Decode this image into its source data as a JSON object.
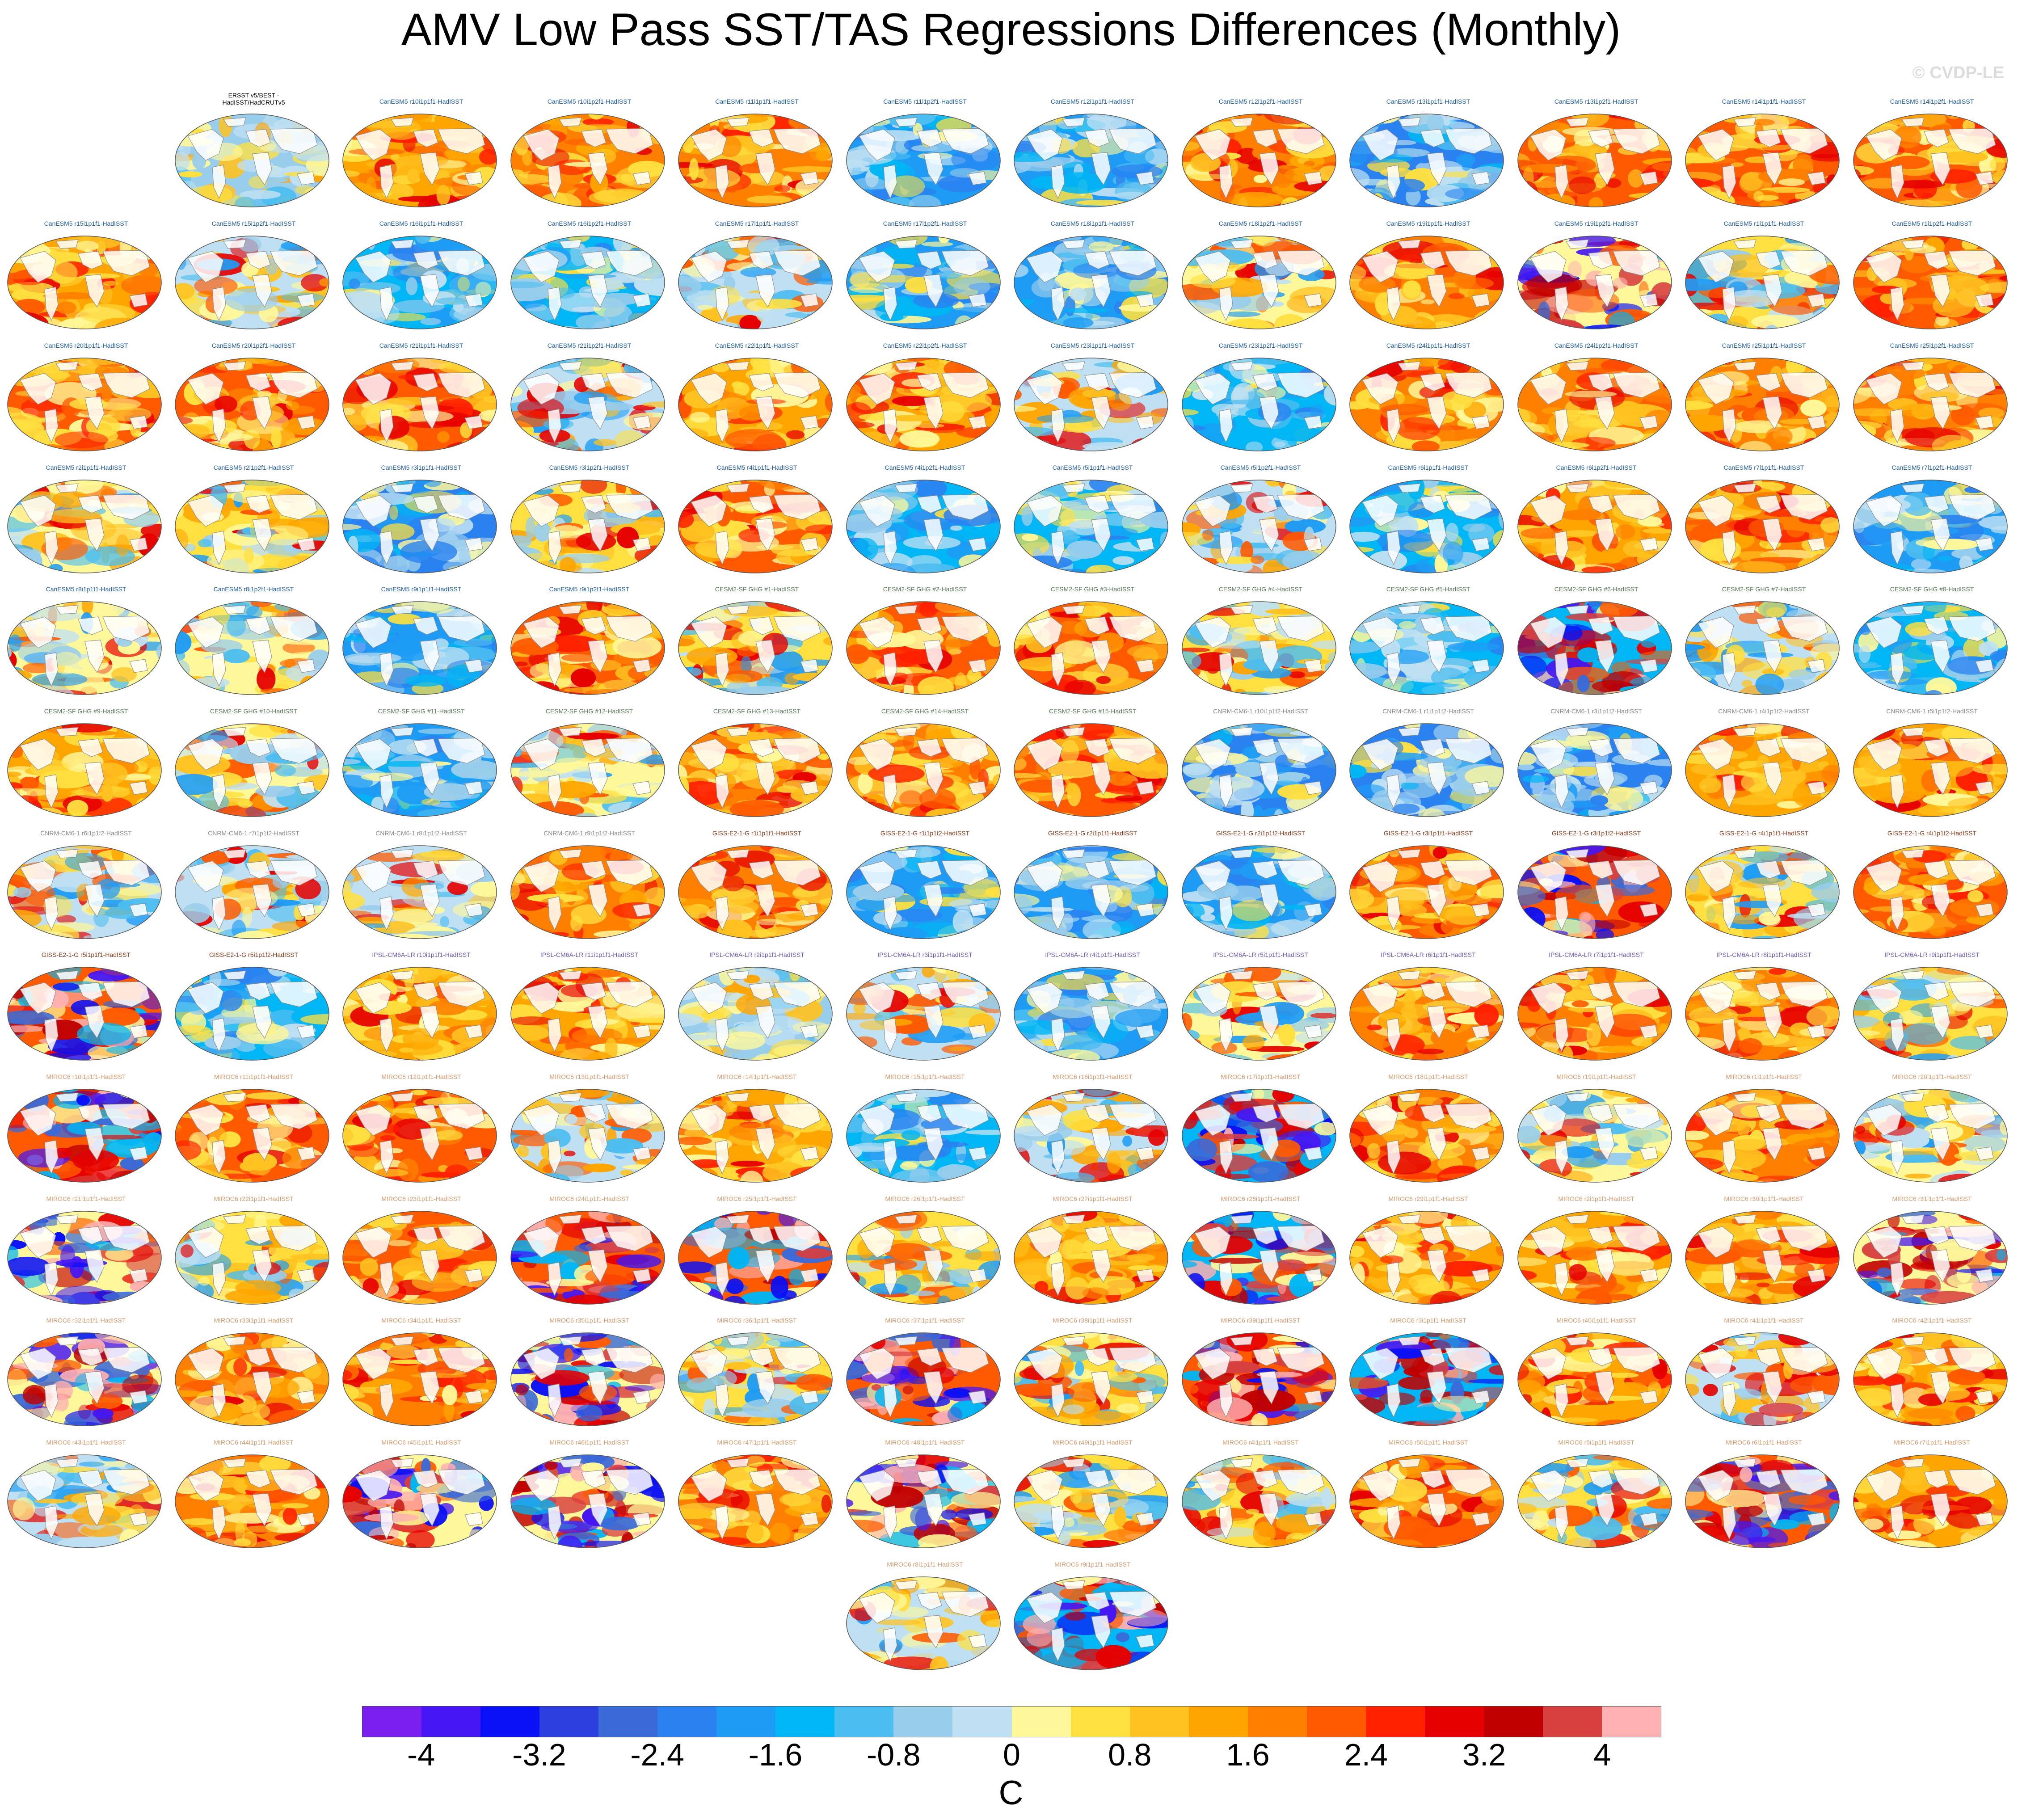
{
  "title": "AMV Low Pass SST/TAS Regressions Differences (Monthly)",
  "copyright": "© CVDP-LE",
  "units": "C",
  "label_colors": {
    "obs": "#000000",
    "CanESM5": "#1f5fa8",
    "CESM2-SF GHG": "#5b7a5b",
    "CNRM-CM6-1": "#8a8a8a",
    "GISS-E2-1-G": "#8b3a1a",
    "IPSL-CM6A-LR": "#6f5ab8",
    "MIROC6": "#d8996c"
  },
  "colorbar": {
    "colors": [
      "#7a1ff0",
      "#4617f2",
      "#0a10f5",
      "#2c40e0",
      "#3a6ad8",
      "#2a82f0",
      "#1e9cf5",
      "#00b6f4",
      "#4cbdf0",
      "#99cdec",
      "#bfe0f2",
      "#fff89a",
      "#ffe040",
      "#ffc220",
      "#ffa500",
      "#ff8000",
      "#ff5a00",
      "#ff2000",
      "#e60000",
      "#c00000",
      "#d84040",
      "#ffb0b0"
    ],
    "tick_labels": [
      "-4",
      "-3.2",
      "-2.4",
      "-1.6",
      "-0.8",
      "0",
      "0.8",
      "1.6",
      "2.4",
      "3.2",
      "4"
    ]
  },
  "panels": [
    {
      "label": [
        "ERSST v5/BEST -",
        "HadISST/HadCRUTv5"
      ],
      "model": "obs",
      "style": "pale"
    },
    {
      "label": [
        "CanESM5 r10i1p1f1-HadISST"
      ],
      "model": "CanESM5",
      "style": "red"
    },
    {
      "label": [
        "CanESM5 r10i1p2f1-HadISST"
      ],
      "model": "CanESM5",
      "style": "red"
    },
    {
      "label": [
        "CanESM5 r11i1p1f1-HadISST"
      ],
      "model": "CanESM5",
      "style": "red"
    },
    {
      "label": [
        "CanESM5 r11i1p2f1-HadISST"
      ],
      "model": "CanESM5",
      "style": "blue"
    },
    {
      "label": [
        "CanESM5 r12i1p1f1-HadISST"
      ],
      "model": "CanESM5",
      "style": "blue"
    },
    {
      "label": [
        "CanESM5 r12i1p2f1-HadISST"
      ],
      "model": "CanESM5",
      "style": "red"
    },
    {
      "label": [
        "CanESM5 r13i1p1f1-HadISST"
      ],
      "model": "CanESM5",
      "style": "blue"
    },
    {
      "label": [
        "CanESM5 r13i1p2f1-HadISST"
      ],
      "model": "CanESM5",
      "style": "red"
    },
    {
      "label": [
        "CanESM5 r14i1p1f1-HadISST"
      ],
      "model": "CanESM5",
      "style": "red"
    },
    {
      "label": [
        "CanESM5 r14i1p2f1-HadISST"
      ],
      "model": "CanESM5",
      "style": "red"
    },
    {
      "label": [
        "CanESM5 r15i1p1f1-HadISST"
      ],
      "model": "CanESM5",
      "style": "red"
    },
    {
      "label": [
        "CanESM5 r15i1p2f1-HadISST"
      ],
      "model": "CanESM5",
      "style": "mixed"
    },
    {
      "label": [
        "CanESM5 r16i1p1f1-HadISST"
      ],
      "model": "CanESM5",
      "style": "blue"
    },
    {
      "label": [
        "CanESM5 r16i1p2f1-HadISST"
      ],
      "model": "CanESM5",
      "style": "blue"
    },
    {
      "label": [
        "CanESM5 r17i1p1f1-HadISST"
      ],
      "model": "CanESM5",
      "style": "mixed"
    },
    {
      "label": [
        "CanESM5 r17i1p2f1-HadISST"
      ],
      "model": "CanESM5",
      "style": "blue"
    },
    {
      "label": [
        "CanESM5 r18i1p1f1-HadISST"
      ],
      "model": "CanESM5",
      "style": "blue"
    },
    {
      "label": [
        "CanESM5 r18i1p2f1-HadISST"
      ],
      "model": "CanESM5",
      "style": "mixed"
    },
    {
      "label": [
        "CanESM5 r19i1p1f1-HadISST"
      ],
      "model": "CanESM5",
      "style": "red"
    },
    {
      "label": [
        "CanESM5 r19i1p2f1-HadISST"
      ],
      "model": "CanESM5",
      "style": "strong"
    },
    {
      "label": [
        "CanESM5 r1i1p1f1-HadISST"
      ],
      "model": "CanESM5",
      "style": "mixed"
    },
    {
      "label": [
        "CanESM5 r1i1p2f1-HadISST"
      ],
      "model": "CanESM5",
      "style": "red"
    },
    {
      "label": [
        "CanESM5 r20i1p1f1-HadISST"
      ],
      "model": "CanESM5",
      "style": "red"
    },
    {
      "label": [
        "CanESM5 r20i1p2f1-HadISST"
      ],
      "model": "CanESM5",
      "style": "red"
    },
    {
      "label": [
        "CanESM5 r21i1p1f1-HadISST"
      ],
      "model": "CanESM5",
      "style": "red"
    },
    {
      "label": [
        "CanESM5 r21i1p2f1-HadISST"
      ],
      "model": "CanESM5",
      "style": "mixed"
    },
    {
      "label": [
        "CanESM5 r22i1p1f1-HadISST"
      ],
      "model": "CanESM5",
      "style": "red"
    },
    {
      "label": [
        "CanESM5 r22i1p2f1-HadISST"
      ],
      "model": "CanESM5",
      "style": "red"
    },
    {
      "label": [
        "CanESM5 r23i1p1f1-HadISST"
      ],
      "model": "CanESM5",
      "style": "mixed"
    },
    {
      "label": [
        "CanESM5 r23i1p2f1-HadISST"
      ],
      "model": "CanESM5",
      "style": "blue"
    },
    {
      "label": [
        "CanESM5 r24i1p1f1-HadISST"
      ],
      "model": "CanESM5",
      "style": "red"
    },
    {
      "label": [
        "CanESM5 r24i1p2f1-HadISST"
      ],
      "model": "CanESM5",
      "style": "red"
    },
    {
      "label": [
        "CanESM5 r25i1p1f1-HadISST"
      ],
      "model": "CanESM5",
      "style": "red"
    },
    {
      "label": [
        "CanESM5 r25i1p2f1-HadISST"
      ],
      "model": "CanESM5",
      "style": "red"
    },
    {
      "label": [
        "CanESM5 r2i1p1f1-HadISST"
      ],
      "model": "CanESM5",
      "style": "mixed"
    },
    {
      "label": [
        "CanESM5 r2i1p2f1-HadISST"
      ],
      "model": "CanESM5",
      "style": "mixed"
    },
    {
      "label": [
        "CanESM5 r3i1p1f1-HadISST"
      ],
      "model": "CanESM5",
      "style": "blue"
    },
    {
      "label": [
        "CanESM5 r3i1p2f1-HadISST"
      ],
      "model": "CanESM5",
      "style": "mixed"
    },
    {
      "label": [
        "CanESM5 r4i1p1f1-HadISST"
      ],
      "model": "CanESM5",
      "style": "red"
    },
    {
      "label": [
        "CanESM5 r4i1p2f1-HadISST"
      ],
      "model": "CanESM5",
      "style": "blue"
    },
    {
      "label": [
        "CanESM5 r5i1p1f1-HadISST"
      ],
      "model": "CanESM5",
      "style": "blue"
    },
    {
      "label": [
        "CanESM5 r5i1p2f1-HadISST"
      ],
      "model": "CanESM5",
      "style": "mixed"
    },
    {
      "label": [
        "CanESM5 r6i1p1f1-HadISST"
      ],
      "model": "CanESM5",
      "style": "blue"
    },
    {
      "label": [
        "CanESM5 r6i1p2f1-HadISST"
      ],
      "model": "CanESM5",
      "style": "red"
    },
    {
      "label": [
        "CanESM5 r7i1p1f1-HadISST"
      ],
      "model": "CanESM5",
      "style": "red"
    },
    {
      "label": [
        "CanESM5 r7i1p2f1-HadISST"
      ],
      "model": "CanESM5",
      "style": "blue"
    },
    {
      "label": [
        "CanESM5 r8i1p1f1-HadISST"
      ],
      "model": "CanESM5",
      "style": "mixed"
    },
    {
      "label": [
        "CanESM5 r8i1p2f1-HadISST"
      ],
      "model": "CanESM5",
      "style": "mixed"
    },
    {
      "label": [
        "CanESM5 r9i1p1f1-HadISST"
      ],
      "model": "CanESM5",
      "style": "blue"
    },
    {
      "label": [
        "CanESM5 r9i1p2f1-HadISST"
      ],
      "model": "CanESM5",
      "style": "red"
    },
    {
      "label": [
        "CESM2-SF GHG #1-HadISST"
      ],
      "model": "CESM2-SF GHG",
      "style": "mixed"
    },
    {
      "label": [
        "CESM2-SF GHG #2-HadISST"
      ],
      "model": "CESM2-SF GHG",
      "style": "red"
    },
    {
      "label": [
        "CESM2-SF GHG #3-HadISST"
      ],
      "model": "CESM2-SF GHG",
      "style": "red"
    },
    {
      "label": [
        "CESM2-SF GHG #4-HadISST"
      ],
      "model": "CESM2-SF GHG",
      "style": "mixed"
    },
    {
      "label": [
        "CESM2-SF GHG #5-HadISST"
      ],
      "model": "CESM2-SF GHG",
      "style": "blue"
    },
    {
      "label": [
        "CESM2-SF GHG #6-HadISST"
      ],
      "model": "CESM2-SF GHG",
      "style": "strong"
    },
    {
      "label": [
        "CESM2-SF GHG #7-HadISST"
      ],
      "model": "CESM2-SF GHG",
      "style": "mixed"
    },
    {
      "label": [
        "CESM2-SF GHG #8-HadISST"
      ],
      "model": "CESM2-SF GHG",
      "style": "blue"
    },
    {
      "label": [
        "CESM2-SF GHG #9-HadISST"
      ],
      "model": "CESM2-SF GHG",
      "style": "red"
    },
    {
      "label": [
        "CESM2-SF GHG #10-HadISST"
      ],
      "model": "CESM2-SF GHG",
      "style": "mixed"
    },
    {
      "label": [
        "CESM2-SF GHG #11-HadISST"
      ],
      "model": "CESM2-SF GHG",
      "style": "blue"
    },
    {
      "label": [
        "CESM2-SF GHG #12-HadISST"
      ],
      "model": "CESM2-SF GHG",
      "style": "mixed"
    },
    {
      "label": [
        "CESM2-SF GHG #13-HadISST"
      ],
      "model": "CESM2-SF GHG",
      "style": "red"
    },
    {
      "label": [
        "CESM2-SF GHG #14-HadISST"
      ],
      "model": "CESM2-SF GHG",
      "style": "red"
    },
    {
      "label": [
        "CESM2-SF GHG #15-HadISST"
      ],
      "model": "CESM2-SF GHG",
      "style": "red"
    },
    {
      "label": [
        "CNRM-CM6-1 r10i1p1f2-HadISST"
      ],
      "model": "CNRM-CM6-1",
      "style": "blue"
    },
    {
      "label": [
        "CNRM-CM6-1 r1i1p1f2-HadISST"
      ],
      "model": "CNRM-CM6-1",
      "style": "blue"
    },
    {
      "label": [
        "CNRM-CM6-1 r3i1p1f2-HadISST"
      ],
      "model": "CNRM-CM6-1",
      "style": "blue"
    },
    {
      "label": [
        "CNRM-CM6-1 r4i1p1f2-HadISST"
      ],
      "model": "CNRM-CM6-1",
      "style": "red"
    },
    {
      "label": [
        "CNRM-CM6-1 r5i1p1f2-HadISST"
      ],
      "model": "CNRM-CM6-1",
      "style": "red"
    },
    {
      "label": [
        "CNRM-CM6-1 r6i1p1f2-HadISST"
      ],
      "model": "CNRM-CM6-1",
      "style": "mixed"
    },
    {
      "label": [
        "CNRM-CM6-1 r7i1p1f2-HadISST"
      ],
      "model": "CNRM-CM6-1",
      "style": "mixed"
    },
    {
      "label": [
        "CNRM-CM6-1 r8i1p1f2-HadISST"
      ],
      "model": "CNRM-CM6-1",
      "style": "mixed"
    },
    {
      "label": [
        "CNRM-CM6-1 r9i1p1f2-HadISST"
      ],
      "model": "CNRM-CM6-1",
      "style": "red"
    },
    {
      "label": [
        "GISS-E2-1-G r1i1p1f1-HadISST"
      ],
      "model": "GISS-E2-1-G",
      "style": "red"
    },
    {
      "label": [
        "GISS-E2-1-G r1i1p1f2-HadISST"
      ],
      "model": "GISS-E2-1-G",
      "style": "blue"
    },
    {
      "label": [
        "GISS-E2-1-G r2i1p1f1-HadISST"
      ],
      "model": "GISS-E2-1-G",
      "style": "blue"
    },
    {
      "label": [
        "GISS-E2-1-G r2i1p1f2-HadISST"
      ],
      "model": "GISS-E2-1-G",
      "style": "blue"
    },
    {
      "label": [
        "GISS-E2-1-G r3i1p1f1-HadISST"
      ],
      "model": "GISS-E2-1-G",
      "style": "red"
    },
    {
      "label": [
        "GISS-E2-1-G r3i1p1f2-HadISST"
      ],
      "model": "GISS-E2-1-G",
      "style": "strong"
    },
    {
      "label": [
        "GISS-E2-1-G r4i1p1f1-HadISST"
      ],
      "model": "GISS-E2-1-G",
      "style": "mixed"
    },
    {
      "label": [
        "GISS-E2-1-G r4i1p1f2-HadISST"
      ],
      "model": "GISS-E2-1-G",
      "style": "red"
    },
    {
      "label": [
        "GISS-E2-1-G r5i1p1f1-HadISST"
      ],
      "model": "GISS-E2-1-G",
      "style": "strong"
    },
    {
      "label": [
        "GISS-E2-1-G r5i1p1f2-HadISST"
      ],
      "model": "GISS-E2-1-G",
      "style": "blue"
    },
    {
      "label": [
        "IPSL-CM6A-LR r10i1p1f1-HadISST"
      ],
      "model": "IPSL-CM6A-LR",
      "style": "red"
    },
    {
      "label": [
        "IPSL-CM6A-LR r11i1p1f1-HadISST"
      ],
      "model": "IPSL-CM6A-LR",
      "style": "red"
    },
    {
      "label": [
        "IPSL-CM6A-LR r2i1p1f1-HadISST"
      ],
      "model": "IPSL-CM6A-LR",
      "style": "pale"
    },
    {
      "label": [
        "IPSL-CM6A-LR r3i1p1f1-HadISST"
      ],
      "model": "IPSL-CM6A-LR",
      "style": "mixed"
    },
    {
      "label": [
        "IPSL-CM6A-LR r4i1p1f1-HadISST"
      ],
      "model": "IPSL-CM6A-LR",
      "style": "blue"
    },
    {
      "label": [
        "IPSL-CM6A-LR r5i1p1f1-HadISST"
      ],
      "model": "IPSL-CM6A-LR",
      "style": "mixed"
    },
    {
      "label": [
        "IPSL-CM6A-LR r6i1p1f1-HadISST"
      ],
      "model": "IPSL-CM6A-LR",
      "style": "red"
    },
    {
      "label": [
        "IPSL-CM6A-LR r7i1p1f1-HadISST"
      ],
      "model": "IPSL-CM6A-LR",
      "style": "red"
    },
    {
      "label": [
        "IPSL-CM6A-LR r8i1p1f1-HadISST"
      ],
      "model": "IPSL-CM6A-LR",
      "style": "red"
    },
    {
      "label": [
        "IPSL-CM6A-LR r9i1p1f1-HadISST"
      ],
      "model": "IPSL-CM6A-LR",
      "style": "mixed"
    },
    {
      "label": [
        "MIROC6 r10i1p1f1-HadISST"
      ],
      "model": "MIROC6",
      "style": "strong"
    },
    {
      "label": [
        "MIROC6 r11i1p1f1-HadISST"
      ],
      "model": "MIROC6",
      "style": "red"
    },
    {
      "label": [
        "MIROC6 r12i1p1f1-HadISST"
      ],
      "model": "MIROC6",
      "style": "red"
    },
    {
      "label": [
        "MIROC6 r13i1p1f1-HadISST"
      ],
      "model": "MIROC6",
      "style": "mixed"
    },
    {
      "label": [
        "MIROC6 r14i1p1f1-HadISST"
      ],
      "model": "MIROC6",
      "style": "red"
    },
    {
      "label": [
        "MIROC6 r15i1p1f1-HadISST"
      ],
      "model": "MIROC6",
      "style": "blue"
    },
    {
      "label": [
        "MIROC6 r16i1p1f1-HadISST"
      ],
      "model": "MIROC6",
      "style": "mixed"
    },
    {
      "label": [
        "MIROC6 r17i1p1f1-HadISST"
      ],
      "model": "MIROC6",
      "style": "strong"
    },
    {
      "label": [
        "MIROC6 r18i1p1f1-HadISST"
      ],
      "model": "MIROC6",
      "style": "red"
    },
    {
      "label": [
        "MIROC6 r19i1p1f1-HadISST"
      ],
      "model": "MIROC6",
      "style": "mixed"
    },
    {
      "label": [
        "MIROC6 r1i1p1f1-HadISST"
      ],
      "model": "MIROC6",
      "style": "red"
    },
    {
      "label": [
        "MIROC6 r20i1p1f1-HadISST"
      ],
      "model": "MIROC6",
      "style": "mixed"
    },
    {
      "label": [
        "MIROC6 r21i1p1f1-HadISST"
      ],
      "model": "MIROC6",
      "style": "strong"
    },
    {
      "label": [
        "MIROC6 r22i1p1f1-HadISST"
      ],
      "model": "MIROC6",
      "style": "mixed"
    },
    {
      "label": [
        "MIROC6 r23i1p1f1-HadISST"
      ],
      "model": "MIROC6",
      "style": "red"
    },
    {
      "label": [
        "MIROC6 r24i1p1f1-HadISST"
      ],
      "model": "MIROC6",
      "style": "strong"
    },
    {
      "label": [
        "MIROC6 r25i1p1f1-HadISST"
      ],
      "model": "MIROC6",
      "style": "strong"
    },
    {
      "label": [
        "MIROC6 r26i1p1f1-HadISST"
      ],
      "model": "MIROC6",
      "style": "mixed"
    },
    {
      "label": [
        "MIROC6 r27i1p1f1-HadISST"
      ],
      "model": "MIROC6",
      "style": "red"
    },
    {
      "label": [
        "MIROC6 r28i1p1f1-HadISST"
      ],
      "model": "MIROC6",
      "style": "strong"
    },
    {
      "label": [
        "MIROC6 r29i1p1f1-HadISST"
      ],
      "model": "MIROC6",
      "style": "red"
    },
    {
      "label": [
        "MIROC6 r2i1p1f1-HadISST"
      ],
      "model": "MIROC6",
      "style": "red"
    },
    {
      "label": [
        "MIROC6 r30i1p1f1-HadISST"
      ],
      "model": "MIROC6",
      "style": "red"
    },
    {
      "label": [
        "MIROC6 r31i1p1f1-HadISST"
      ],
      "model": "MIROC6",
      "style": "strong"
    },
    {
      "label": [
        "MIROC6 r32i1p1f1-HadISST"
      ],
      "model": "MIROC6",
      "style": "strong"
    },
    {
      "label": [
        "MIROC6 r33i1p1f1-HadISST"
      ],
      "model": "MIROC6",
      "style": "red"
    },
    {
      "label": [
        "MIROC6 r34i1p1f1-HadISST"
      ],
      "model": "MIROC6",
      "style": "red"
    },
    {
      "label": [
        "MIROC6 r35i1p1f1-HadISST"
      ],
      "model": "MIROC6",
      "style": "strong"
    },
    {
      "label": [
        "MIROC6 r36i1p1f1-HadISST"
      ],
      "model": "MIROC6",
      "style": "mixed"
    },
    {
      "label": [
        "MIROC6 r37i1p1f1-HadISST"
      ],
      "model": "MIROC6",
      "style": "strong"
    },
    {
      "label": [
        "MIROC6 r38i1p1f1-HadISST"
      ],
      "model": "MIROC6",
      "style": "mixed"
    },
    {
      "label": [
        "MIROC6 r39i1p1f1-HadISST"
      ],
      "model": "MIROC6",
      "style": "strong"
    },
    {
      "label": [
        "MIROC6 r3i1p1f1-HadISST"
      ],
      "model": "MIROC6",
      "style": "strong"
    },
    {
      "label": [
        "MIROC6 r40i1p1f1-HadISST"
      ],
      "model": "MIROC6",
      "style": "red"
    },
    {
      "label": [
        "MIROC6 r41i1p1f1-HadISST"
      ],
      "model": "MIROC6",
      "style": "mixed"
    },
    {
      "label": [
        "MIROC6 r42i1p1f1-HadISST"
      ],
      "model": "MIROC6",
      "style": "red"
    },
    {
      "label": [
        "MIROC6 r43i1p1f1-HadISST"
      ],
      "model": "MIROC6",
      "style": "mixed"
    },
    {
      "label": [
        "MIROC6 r44i1p1f1-HadISST"
      ],
      "model": "MIROC6",
      "style": "red"
    },
    {
      "label": [
        "MIROC6 r45i1p1f1-HadISST"
      ],
      "model": "MIROC6",
      "style": "strong"
    },
    {
      "label": [
        "MIROC6 r46i1p1f1-HadISST"
      ],
      "model": "MIROC6",
      "style": "strong"
    },
    {
      "label": [
        "MIROC6 r47i1p1f1-HadISST"
      ],
      "model": "MIROC6",
      "style": "red"
    },
    {
      "label": [
        "MIROC6 r48i1p1f1-HadISST"
      ],
      "model": "MIROC6",
      "style": "strong"
    },
    {
      "label": [
        "MIROC6 r49i1p1f1-HadISST"
      ],
      "model": "MIROC6",
      "style": "mixed"
    },
    {
      "label": [
        "MIROC6 r4i1p1f1-HadISST"
      ],
      "model": "MIROC6",
      "style": "mixed"
    },
    {
      "label": [
        "MIROC6 r50i1p1f1-HadISST"
      ],
      "model": "MIROC6",
      "style": "red"
    },
    {
      "label": [
        "MIROC6 r5i1p1f1-HadISST"
      ],
      "model": "MIROC6",
      "style": "mixed"
    },
    {
      "label": [
        "MIROC6 r6i1p1f1-HadISST"
      ],
      "model": "MIROC6",
      "style": "strong"
    },
    {
      "label": [
        "MIROC6 r7i1p1f1-HadISST"
      ],
      "model": "MIROC6",
      "style": "red"
    },
    {
      "label": [
        "MIROC6 r8i1p1f1-HadISST"
      ],
      "model": "MIROC6",
      "style": "mixed"
    },
    {
      "label": [
        "MIROC6 r9i1p1f1-HadISST"
      ],
      "model": "MIROC6",
      "style": "strong"
    }
  ]
}
